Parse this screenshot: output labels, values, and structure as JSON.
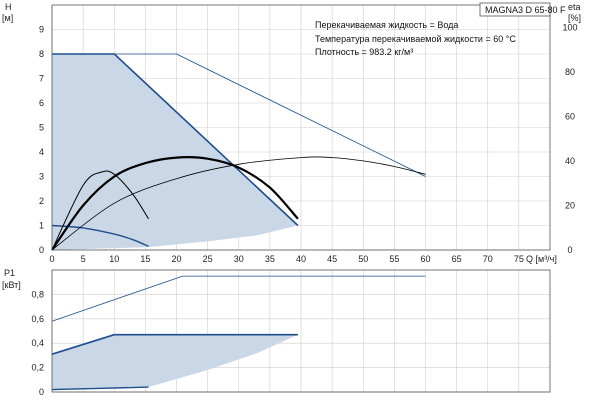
{
  "chart_data": {
    "type": "line",
    "title": "MAGNA3 D 65-80 F",
    "info": [
      "Перекачиваемая жидкость = Вода",
      "Температура перекачиваемой жидкости = 60 °C",
      "Плотность = 983.2 кг/м³"
    ],
    "x_axis": {
      "label": "Q [м³/ч]",
      "range": [
        0,
        80
      ],
      "ticks": [
        0,
        5,
        10,
        15,
        20,
        25,
        30,
        35,
        40,
        45,
        50,
        55,
        60,
        65,
        70,
        75
      ],
      "tick_labels": [
        "0",
        "5",
        "10",
        "15",
        "20",
        "25",
        "30",
        "35",
        "40",
        "45",
        "50",
        "55",
        "60",
        "65",
        "70",
        "75"
      ]
    },
    "head_axis": {
      "label_top": "H",
      "label_unit": "[м]",
      "range": [
        0,
        10
      ],
      "ticks": [
        0,
        1,
        2,
        3,
        4,
        5,
        6,
        7,
        8,
        9
      ],
      "tick_labels": [
        "0",
        "1",
        "2",
        "3",
        "4",
        "5",
        "6",
        "7",
        "8",
        "9"
      ]
    },
    "eta_axis": {
      "label_top": "eta",
      "label_unit": "[%]",
      "range": [
        0,
        110
      ],
      "ticks": [
        0,
        20,
        40,
        60,
        80,
        100
      ],
      "tick_labels": [
        "0",
        "20",
        "40",
        "60",
        "80",
        "100"
      ]
    },
    "power_axis": {
      "label_top": "P1",
      "label_unit": "[кВт]",
      "range": [
        0,
        1
      ],
      "ticks": [
        0,
        0.2,
        0.4,
        0.6,
        0.8
      ],
      "tick_labels": [
        "0",
        "0,2",
        "0,4",
        "0,6",
        "0,8"
      ]
    },
    "head_area": {
      "upper": [
        [
          0,
          8
        ],
        [
          10,
          8
        ],
        [
          39.5,
          1.0
        ]
      ],
      "lower": [
        [
          15.5,
          0.12
        ],
        [
          25,
          0.35
        ],
        [
          33,
          0.6
        ],
        [
          39.5,
          1.0
        ]
      ]
    },
    "head_series": [
      {
        "points": [
          [
            0,
            8
          ],
          [
            10,
            8
          ],
          [
            39.5,
            1.0
          ]
        ],
        "color": "#1f4e8c",
        "width": 1.6
      },
      {
        "points": [
          [
            0,
            8
          ],
          [
            20,
            8
          ],
          [
            60,
            3.0
          ]
        ],
        "color": "#1f4e8c",
        "width": 0.8
      },
      {
        "points": [
          [
            0,
            1.0
          ],
          [
            5,
            0.9
          ],
          [
            10,
            0.65
          ],
          [
            13,
            0.42
          ],
          [
            15.5,
            0.15
          ]
        ],
        "color": "#1f4e8c",
        "width": 1.4
      }
    ],
    "eta_series": [
      {
        "points": [
          [
            0,
            0
          ],
          [
            5,
            20
          ],
          [
            10,
            33
          ],
          [
            15,
            39
          ],
          [
            20,
            41.5
          ],
          [
            25,
            41
          ],
          [
            30,
            37
          ],
          [
            35,
            28
          ],
          [
            39.5,
            14
          ]
        ],
        "color": "#000000",
        "width": 2.2
      },
      {
        "points": [
          [
            0,
            0
          ],
          [
            5,
            29
          ],
          [
            8,
            35
          ],
          [
            10,
            34
          ],
          [
            13,
            25
          ],
          [
            15.5,
            14
          ]
        ],
        "color": "#000000",
        "width": 1.0
      },
      {
        "points": [
          [
            0,
            0
          ],
          [
            10,
            21
          ],
          [
            20,
            32
          ],
          [
            30,
            38.5
          ],
          [
            40,
            41.5
          ],
          [
            45,
            41.5
          ],
          [
            50,
            40
          ],
          [
            55,
            37.5
          ],
          [
            60,
            34
          ]
        ],
        "color": "#000000",
        "width": 0.8
      }
    ],
    "power_area": {
      "upper": [
        [
          0,
          0.31
        ],
        [
          10,
          0.47
        ],
        [
          39.5,
          0.47
        ]
      ],
      "lower": [
        [
          0,
          0.02
        ],
        [
          15.5,
          0.04
        ],
        [
          25,
          0.18
        ],
        [
          33,
          0.32
        ],
        [
          39.5,
          0.47
        ]
      ]
    },
    "power_series": [
      {
        "points": [
          [
            0,
            0.31
          ],
          [
            10,
            0.47
          ],
          [
            39.5,
            0.47
          ]
        ],
        "color": "#1f4e8c",
        "width": 1.6
      },
      {
        "points": [
          [
            0,
            0.58
          ],
          [
            21,
            0.95
          ],
          [
            60,
            0.95
          ]
        ],
        "color": "#1f4e8c",
        "width": 0.8
      },
      {
        "points": [
          [
            0,
            0.02
          ],
          [
            8,
            0.03
          ],
          [
            15.5,
            0.04
          ]
        ],
        "color": "#1f4e8c",
        "width": 1.4
      }
    ],
    "grid": true
  },
  "colors": {
    "area_fill": "#c9d7e6",
    "grid": "#cfcfcf",
    "axis": "#555555"
  }
}
